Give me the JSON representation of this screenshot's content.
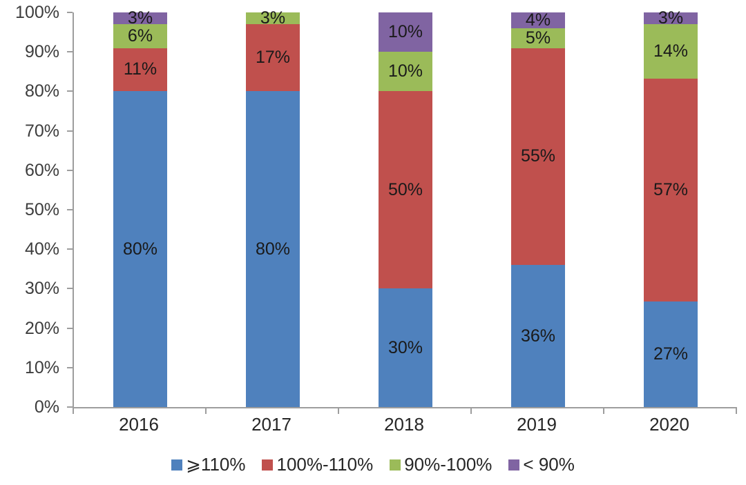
{
  "chart_data": {
    "type": "bar",
    "stacking": "percent",
    "title": "",
    "xlabel": "",
    "ylabel": "",
    "categories": [
      "2016",
      "2017",
      "2018",
      "2019",
      "2020"
    ],
    "series": [
      {
        "name": "⩾110%",
        "color": "#4F81BD",
        "values": [
          80,
          80,
          30,
          36,
          27
        ]
      },
      {
        "name": "100%-110%",
        "color": "#C0504D",
        "values": [
          11,
          17,
          50,
          55,
          57
        ]
      },
      {
        "name": "90%-100%",
        "color": "#9BBB59",
        "values": [
          6,
          3,
          10,
          5,
          14
        ]
      },
      {
        "name": "< 90%",
        "color": "#8064A2",
        "values": [
          3,
          0,
          10,
          4,
          3
        ]
      }
    ],
    "data_label_suffix": "%",
    "y_axis": {
      "min": 0,
      "max": 100,
      "ticks": [
        "0%",
        "10%",
        "20%",
        "30%",
        "40%",
        "50%",
        "60%",
        "70%",
        "80%",
        "90%",
        "100%"
      ]
    },
    "grid": false,
    "legend_position": "bottom",
    "axis_color": "#9D9D9D",
    "tick_label_color": "#3D3D3D",
    "data_label_color": "#1A1A1A"
  }
}
